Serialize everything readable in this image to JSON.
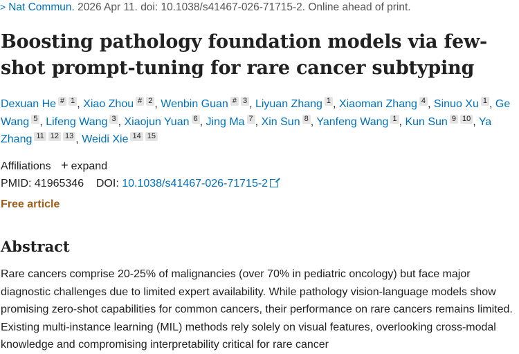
{
  "citation": {
    "journal": "Nat Commun.",
    "details": "2026 Apr 11. doi: 10.1038/s41467-026-71715-2. Online ahead of print."
  },
  "title": "Boosting pathology foundation models via few-shot prompt-tuning for rare cancer subtyping",
  "authors": [
    {
      "name": "Dexuan He",
      "aff": "# 1"
    },
    {
      "name": "Xiao Zhou",
      "aff": "# 2"
    },
    {
      "name": "Wenbin Guan",
      "aff": "# 3"
    },
    {
      "name": "Liyuan Zhang",
      "aff": "1"
    },
    {
      "name": "Xiaoman Zhang",
      "aff": "4"
    },
    {
      "name": "Sinuo Xu",
      "aff": "1"
    },
    {
      "name": "Ge Wang",
      "aff": "5"
    },
    {
      "name": "Lifeng Wang",
      "aff": "3"
    },
    {
      "name": "Xiaojun Yuan",
      "aff": "6"
    },
    {
      "name": "Jing Ma",
      "aff": "7"
    },
    {
      "name": "Xin Sun",
      "aff": "8"
    },
    {
      "name": "Yanfeng Wang",
      "aff": "1"
    },
    {
      "name": "Kun Sun",
      "aff": "9 10"
    },
    {
      "name": "Ya Zhang",
      "aff": "11 12 13"
    },
    {
      "name": "Weidi Xie",
      "aff": "14 15"
    }
  ],
  "affiliations": {
    "label": "Affiliations",
    "expand": "expand"
  },
  "ids": {
    "pmid_label": "PMID:",
    "pmid": "41965346",
    "doi_label": "DOI:",
    "doi": "10.1038/s41467-026-71715-2"
  },
  "free_article": "Free article",
  "abstract": {
    "heading": "Abstract",
    "text": "Rare cancers comprise 20-25% of malignancies (over 70% in pediatric oncology) but face major diagnostic challenges due to limited expert availability. While pathology vision-language models show promising zero-shot capabilities for common cancers, their performance on rare cancers remains limited. Existing multi-instance learning (MIL) methods rely solely on visual features, overlooking cross-modal knowledge and compromising interpretability critical for rare cancer"
  }
}
